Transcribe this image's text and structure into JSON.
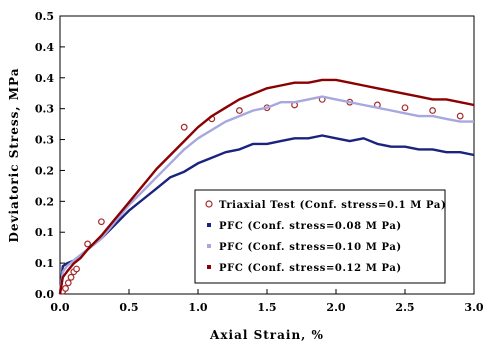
{
  "chart_data": {
    "type": "scatter",
    "xlabel": "Axial Strain, %",
    "ylabel": "Deviatoric Stress, MPa",
    "xlim": [
      0,
      3.0
    ],
    "ylim": [
      0,
      0.5
    ],
    "x_ticks": [
      "0.0",
      "0.5",
      "1.0",
      "1.5",
      "2.0",
      "2.5",
      "3.0"
    ],
    "y_ticks": [
      "0.0",
      "0.1",
      "0.1",
      "0.2",
      "0.2",
      "0.3",
      "0.3",
      "0.4",
      "0.4",
      "0.5"
    ],
    "grid": false,
    "legend_position": "bottom-right",
    "series": [
      {
        "name": "Triaxial Test (Conf. stress=0.1 M Pa)",
        "marker": "open-circle",
        "color": "#a52a2a",
        "x": [
          0.02,
          0.04,
          0.06,
          0.08,
          0.1,
          0.12,
          0.2,
          0.3,
          0.9,
          1.1,
          1.3,
          1.5,
          1.7,
          1.9,
          2.1,
          2.3,
          2.5,
          2.7,
          2.9
        ],
        "y": [
          0.005,
          0.01,
          0.02,
          0.03,
          0.04,
          0.045,
          0.09,
          0.13,
          0.3,
          0.315,
          0.33,
          0.335,
          0.34,
          0.35,
          0.345,
          0.34,
          0.335,
          0.33,
          0.32
        ]
      },
      {
        "name": "PFC (Conf. stress=0.08 M Pa)",
        "color": "#1a237e",
        "x": [
          0.0,
          0.02,
          0.05,
          0.1,
          0.15,
          0.2,
          0.3,
          0.4,
          0.5,
          0.6,
          0.7,
          0.8,
          0.9,
          1.0,
          1.1,
          1.2,
          1.3,
          1.4,
          1.5,
          1.6,
          1.7,
          1.8,
          1.9,
          2.0,
          2.1,
          2.2,
          2.3,
          2.4,
          2.5,
          2.6,
          2.7,
          2.8,
          2.9,
          3.0
        ],
        "y": [
          0.0,
          0.05,
          0.055,
          0.06,
          0.07,
          0.08,
          0.1,
          0.125,
          0.15,
          0.17,
          0.19,
          0.21,
          0.22,
          0.235,
          0.245,
          0.255,
          0.26,
          0.27,
          0.27,
          0.275,
          0.28,
          0.28,
          0.285,
          0.28,
          0.275,
          0.28,
          0.27,
          0.265,
          0.265,
          0.26,
          0.26,
          0.255,
          0.255,
          0.25
        ]
      },
      {
        "name": "PFC (Conf. stress=0.10 M Pa)",
        "color": "#a8a8e0",
        "x": [
          0.0,
          0.02,
          0.05,
          0.1,
          0.15,
          0.2,
          0.3,
          0.4,
          0.5,
          0.6,
          0.7,
          0.8,
          0.9,
          1.0,
          1.1,
          1.2,
          1.3,
          1.4,
          1.5,
          1.6,
          1.7,
          1.8,
          1.9,
          2.0,
          2.1,
          2.2,
          2.3,
          2.4,
          2.5,
          2.6,
          2.7,
          2.8,
          2.9,
          3.0
        ],
        "y": [
          0.0,
          0.04,
          0.05,
          0.06,
          0.07,
          0.08,
          0.1,
          0.13,
          0.16,
          0.185,
          0.21,
          0.235,
          0.26,
          0.28,
          0.295,
          0.31,
          0.32,
          0.33,
          0.335,
          0.345,
          0.345,
          0.35,
          0.355,
          0.35,
          0.345,
          0.34,
          0.335,
          0.33,
          0.325,
          0.32,
          0.32,
          0.315,
          0.31,
          0.31
        ]
      },
      {
        "name": "PFC (Conf. stress=0.12 M Pa)",
        "color": "#8b0000",
        "x": [
          0.0,
          0.02,
          0.05,
          0.1,
          0.15,
          0.2,
          0.3,
          0.4,
          0.5,
          0.6,
          0.7,
          0.8,
          0.9,
          1.0,
          1.1,
          1.2,
          1.3,
          1.4,
          1.5,
          1.6,
          1.7,
          1.8,
          1.9,
          2.0,
          2.1,
          2.2,
          2.3,
          2.4,
          2.5,
          2.6,
          2.7,
          2.8,
          2.9,
          3.0
        ],
        "y": [
          0.0,
          0.03,
          0.04,
          0.055,
          0.065,
          0.08,
          0.105,
          0.135,
          0.165,
          0.195,
          0.225,
          0.25,
          0.275,
          0.3,
          0.32,
          0.335,
          0.35,
          0.36,
          0.37,
          0.375,
          0.38,
          0.38,
          0.385,
          0.385,
          0.38,
          0.375,
          0.37,
          0.365,
          0.36,
          0.355,
          0.35,
          0.35,
          0.345,
          0.34
        ]
      }
    ]
  }
}
